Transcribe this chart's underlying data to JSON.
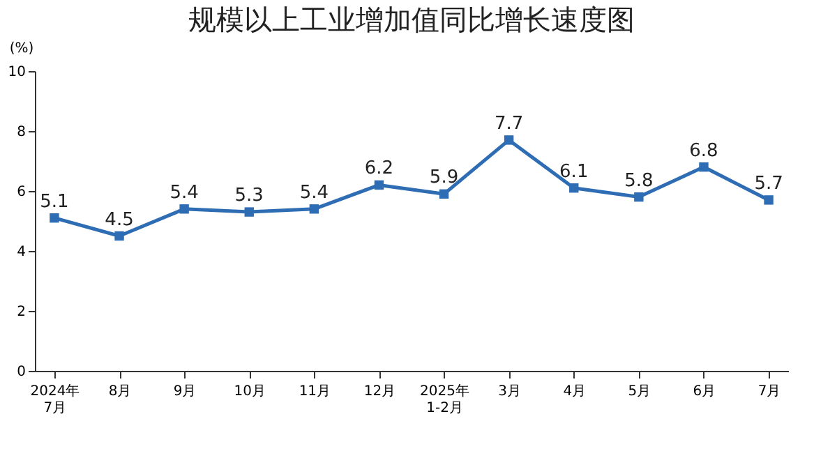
{
  "chart_data": {
    "type": "line",
    "title": "规模以上工业增加值同比增长速度图",
    "ylabel": "(%)",
    "categories": [
      "2024年\n7月",
      "8月",
      "9月",
      "10月",
      "11月",
      "12月",
      "2025年\n1-2月",
      "3月",
      "4月",
      "5月",
      "6月",
      "7月"
    ],
    "series": [
      {
        "color": "#2e6db4",
        "values": [
          5.1,
          4.5,
          5.4,
          5.3,
          5.4,
          6.2,
          5.9,
          7.7,
          6.1,
          5.8,
          6.8,
          5.7
        ]
      }
    ],
    "ylim": [
      0,
      10
    ],
    "yticks": [
      0,
      2,
      4,
      6,
      8,
      10
    ],
    "grid": false,
    "marker": "square",
    "line_style": "solid",
    "data_labels": true
  }
}
